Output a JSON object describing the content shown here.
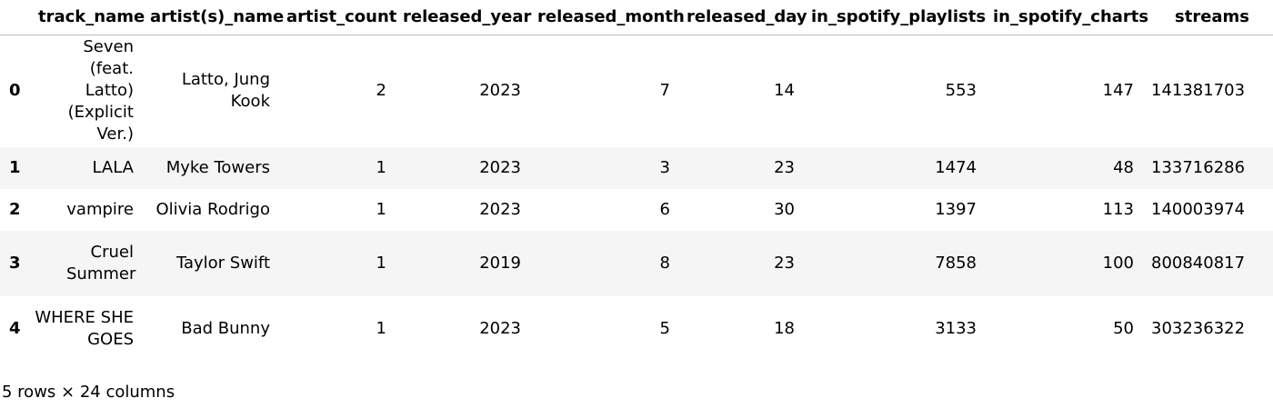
{
  "table": {
    "columns": [
      "track_name",
      "artist(s)_name",
      "artist_count",
      "released_year",
      "released_month",
      "released_day",
      "in_spotify_playlists",
      "in_spotify_charts",
      "streams"
    ],
    "rows": [
      {
        "index": "0",
        "track_name": "Seven (feat. Latto) (Explicit Ver.)",
        "artists": "Latto, Jung Kook",
        "artist_count": "2",
        "released_year": "2023",
        "released_month": "7",
        "released_day": "14",
        "in_spotify_playlists": "553",
        "in_spotify_charts": "147",
        "streams": "141381703"
      },
      {
        "index": "1",
        "track_name": "LALA",
        "artists": "Myke Towers",
        "artist_count": "1",
        "released_year": "2023",
        "released_month": "3",
        "released_day": "23",
        "in_spotify_playlists": "1474",
        "in_spotify_charts": "48",
        "streams": "133716286"
      },
      {
        "index": "2",
        "track_name": "vampire",
        "artists": "Olivia Rodrigo",
        "artist_count": "1",
        "released_year": "2023",
        "released_month": "6",
        "released_day": "30",
        "in_spotify_playlists": "1397",
        "in_spotify_charts": "113",
        "streams": "140003974"
      },
      {
        "index": "3",
        "track_name": "Cruel Summer",
        "artists": "Taylor Swift",
        "artist_count": "1",
        "released_year": "2019",
        "released_month": "8",
        "released_day": "23",
        "in_spotify_playlists": "7858",
        "in_spotify_charts": "100",
        "streams": "800840817"
      },
      {
        "index": "4",
        "track_name": "WHERE SHE GOES",
        "artists": "Bad Bunny",
        "artist_count": "1",
        "released_year": "2023",
        "released_month": "5",
        "released_day": "18",
        "in_spotify_playlists": "3133",
        "in_spotify_charts": "50",
        "streams": "303236322"
      }
    ]
  },
  "footer": {
    "shape_text": "5 rows × 24 columns"
  }
}
